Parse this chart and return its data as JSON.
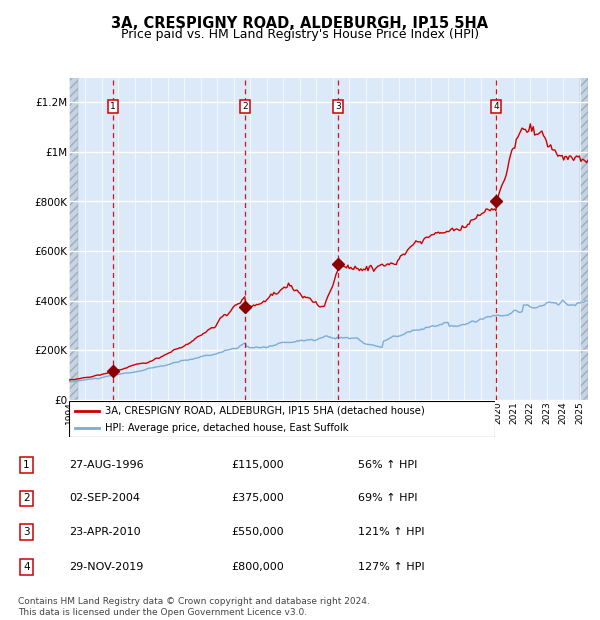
{
  "title": "3A, CRESPIGNY ROAD, ALDEBURGH, IP15 5HA",
  "subtitle": "Price paid vs. HM Land Registry's House Price Index (HPI)",
  "ylim": [
    0,
    1300000
  ],
  "xlim_start": 1994.0,
  "xlim_end": 2025.5,
  "yticks": [
    0,
    200000,
    400000,
    600000,
    800000,
    1000000,
    1200000
  ],
  "ytick_labels": [
    "£0",
    "£200K",
    "£400K",
    "£600K",
    "£800K",
    "£1M",
    "£1.2M"
  ],
  "xticks": [
    1994,
    1995,
    1996,
    1997,
    1998,
    1999,
    2000,
    2001,
    2002,
    2003,
    2004,
    2005,
    2006,
    2007,
    2008,
    2009,
    2010,
    2011,
    2012,
    2013,
    2014,
    2015,
    2016,
    2017,
    2018,
    2019,
    2020,
    2021,
    2022,
    2023,
    2024,
    2025
  ],
  "background_color": "#dce9f8",
  "hatch_color": "#c0d4ea",
  "grid_color": "#ffffff",
  "red_line_color": "#cc0000",
  "blue_line_color": "#7aaed6",
  "marker_color": "#8b0000",
  "vline_color": "#cc0000",
  "sale_dates": [
    1996.66,
    2004.67,
    2010.31,
    2019.91
  ],
  "sale_prices": [
    115000,
    375000,
    550000,
    800000
  ],
  "sale_labels": [
    "1",
    "2",
    "3",
    "4"
  ],
  "legend_red_label": "3A, CRESPIGNY ROAD, ALDEBURGH, IP15 5HA (detached house)",
  "legend_blue_label": "HPI: Average price, detached house, East Suffolk",
  "table_data": [
    [
      "1",
      "27-AUG-1996",
      "£115,000",
      "56% ↑ HPI"
    ],
    [
      "2",
      "02-SEP-2004",
      "£375,000",
      "69% ↑ HPI"
    ],
    [
      "3",
      "23-APR-2010",
      "£550,000",
      "121% ↑ HPI"
    ],
    [
      "4",
      "29-NOV-2019",
      "£800,000",
      "127% ↑ HPI"
    ]
  ],
  "footer_text": "Contains HM Land Registry data © Crown copyright and database right 2024.\nThis data is licensed under the Open Government Licence v3.0."
}
